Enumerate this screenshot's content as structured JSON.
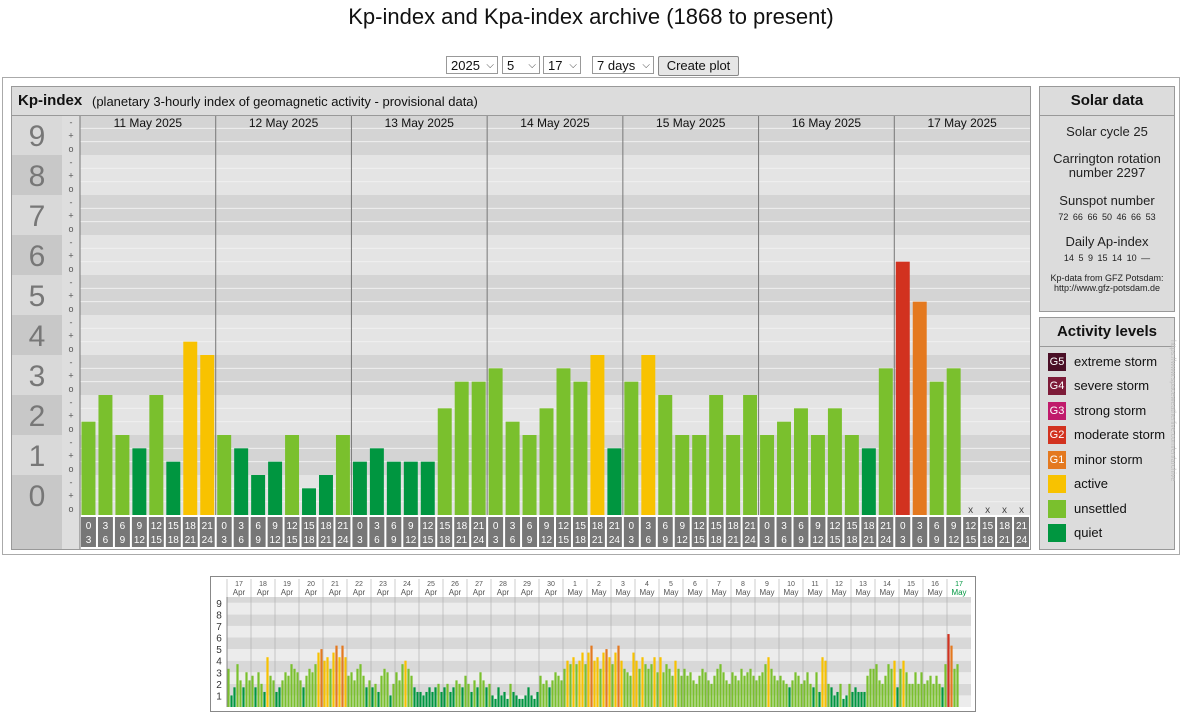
{
  "page": {
    "title": "Kp-index and Kpa-index archive (1868 to present)"
  },
  "controls": {
    "year": "2025",
    "month": "5",
    "day": "17",
    "period": "7 days",
    "button": "Create plot"
  },
  "chart_data": [
    {
      "type": "bar",
      "title": "Kp-index",
      "subtitle": "(planetary 3-hourly index of geomagnetic activity - provisional data)",
      "ylim": [
        0,
        9
      ],
      "yticks": [
        "0",
        "1",
        "2",
        "3",
        "4",
        "5",
        "6",
        "7",
        "8",
        "9"
      ],
      "subticks": [
        "o",
        "+",
        "-"
      ],
      "days": [
        "11 May 2025",
        "12 May 2025",
        "13 May 2025",
        "14 May 2025",
        "15 May 2025",
        "16 May 2025",
        "17 May 2025"
      ],
      "intervals": [
        [
          "0",
          "3"
        ],
        [
          "3",
          "6"
        ],
        [
          "6",
          "9"
        ],
        [
          "9",
          "12"
        ],
        [
          "12",
          "15"
        ],
        [
          "15",
          "18"
        ],
        [
          "18",
          "21"
        ],
        [
          "21",
          "24"
        ]
      ],
      "values": [
        [
          2.333,
          3.0,
          2.0,
          1.667,
          3.0,
          1.333,
          4.333,
          4.0
        ],
        [
          2.0,
          1.667,
          1.0,
          1.333,
          2.0,
          0.667,
          1.0,
          2.0
        ],
        [
          1.333,
          1.667,
          1.333,
          1.333,
          1.333,
          2.667,
          3.333,
          3.333
        ],
        [
          3.667,
          2.333,
          2.0,
          2.667,
          3.667,
          3.333,
          4.0,
          1.667
        ],
        [
          3.333,
          4.0,
          3.0,
          2.0,
          2.0,
          3.0,
          2.0,
          3.0
        ],
        [
          2.0,
          2.333,
          2.667,
          2.0,
          2.667,
          2.0,
          1.667,
          3.667
        ],
        [
          6.333,
          5.333,
          3.333,
          3.667,
          null,
          null,
          null,
          null
        ]
      ],
      "missing_marker": "x",
      "colors": {
        "quiet": "#009640",
        "unsettled": "#7ac02d",
        "active": "#f8c200",
        "G1": "#e4791f",
        "G2": "#d2321f",
        "G3": "#c01a6b",
        "G4": "#7d1b38",
        "G5": "#4a0f26"
      }
    },
    {
      "type": "bar",
      "ylim": [
        0,
        9
      ],
      "yticks": [
        "1",
        "2",
        "3",
        "4",
        "5",
        "6",
        "7",
        "8",
        "9"
      ],
      "days": [
        {
          "d": "17",
          "m": "Apr"
        },
        {
          "d": "18",
          "m": "Apr"
        },
        {
          "d": "19",
          "m": "Apr"
        },
        {
          "d": "20",
          "m": "Apr"
        },
        {
          "d": "21",
          "m": "Apr"
        },
        {
          "d": "22",
          "m": "Apr"
        },
        {
          "d": "23",
          "m": "Apr"
        },
        {
          "d": "24",
          "m": "Apr"
        },
        {
          "d": "25",
          "m": "Apr"
        },
        {
          "d": "26",
          "m": "Apr"
        },
        {
          "d": "27",
          "m": "Apr"
        },
        {
          "d": "28",
          "m": "Apr"
        },
        {
          "d": "29",
          "m": "Apr"
        },
        {
          "d": "30",
          "m": "Apr"
        },
        {
          "d": "1",
          "m": "May"
        },
        {
          "d": "2",
          "m": "May"
        },
        {
          "d": "3",
          "m": "May"
        },
        {
          "d": "4",
          "m": "May"
        },
        {
          "d": "5",
          "m": "May"
        },
        {
          "d": "6",
          "m": "May"
        },
        {
          "d": "7",
          "m": "May"
        },
        {
          "d": "8",
          "m": "May"
        },
        {
          "d": "9",
          "m": "May"
        },
        {
          "d": "10",
          "m": "May"
        },
        {
          "d": "11",
          "m": "May"
        },
        {
          "d": "12",
          "m": "May"
        },
        {
          "d": "13",
          "m": "May"
        },
        {
          "d": "14",
          "m": "May"
        },
        {
          "d": "15",
          "m": "May"
        },
        {
          "d": "16",
          "m": "May"
        },
        {
          "d": "17",
          "m": "May"
        }
      ],
      "current_day_color": "#009640",
      "values": [
        [
          3.3,
          1,
          1.7,
          3.7,
          2.3,
          1.7,
          3,
          2.3
        ],
        [
          2.7,
          1.7,
          3,
          2,
          1.3,
          4.3,
          2.7,
          2.3
        ],
        [
          1.3,
          1.7,
          2.3,
          3,
          2.7,
          3.7,
          3.3,
          3
        ],
        [
          2.3,
          1.7,
          2.7,
          3.3,
          3,
          3.7,
          4.7,
          5
        ],
        [
          4,
          4.3,
          3.3,
          4.7,
          5.3,
          4.3,
          5.3,
          4.3
        ],
        [
          2.7,
          3,
          2.3,
          3.3,
          3.7,
          2.7,
          1.7,
          2.3
        ],
        [
          1.7,
          2,
          1.3,
          2.7,
          3.3,
          3,
          1,
          2
        ],
        [
          3,
          2.3,
          3.7,
          4,
          3.3,
          2.7,
          1.7,
          1.3
        ],
        [
          1.3,
          1,
          1.3,
          1.7,
          1.3,
          1.7,
          2,
          1.3
        ],
        [
          1.7,
          2,
          1.3,
          1.7,
          2.3,
          2,
          1.7,
          2.7
        ],
        [
          2,
          1.3,
          2.3,
          1.7,
          3,
          2.3,
          1.7,
          2
        ],
        [
          1,
          0.7,
          1.7,
          1,
          1.3,
          0.7,
          2,
          1.3
        ],
        [
          1,
          0.7,
          0.7,
          1,
          1.7,
          1,
          0.7,
          1.3
        ],
        [
          2.7,
          2,
          2.3,
          1.7,
          2.3,
          3,
          2.7,
          2.3
        ],
        [
          3.3,
          4,
          3.7,
          4.3,
          3.7,
          4,
          4.7,
          3.7
        ],
        [
          4.7,
          5.3,
          4,
          4.3,
          3.3,
          4.7,
          5,
          4.3
        ],
        [
          3.7,
          4.7,
          5.3,
          4,
          3.3,
          3,
          2.7,
          4.7
        ],
        [
          4,
          3.3,
          4.3,
          3.7,
          3.3,
          3.7,
          4.3,
          3
        ],
        [
          4.3,
          3,
          3.7,
          3.3,
          2.7,
          4,
          3.3,
          2.7
        ],
        [
          3.3,
          2.7,
          3,
          2.3,
          2,
          2.7,
          3.3,
          3
        ],
        [
          2.3,
          2,
          2.7,
          3.3,
          3.7,
          3,
          2.3,
          2
        ],
        [
          3,
          2.7,
          2.3,
          3.3,
          2.7,
          3,
          3.3,
          2.7
        ],
        [
          2.3,
          2.7,
          3,
          3.7,
          4.3,
          3.3,
          2.7,
          2.3
        ],
        [
          2.7,
          2.3,
          2,
          1.7,
          2.3,
          3,
          2.7,
          2
        ],
        [
          2.3,
          3,
          2,
          1.7,
          3,
          1.3,
          4.3,
          4
        ],
        [
          2,
          1.7,
          1,
          1.3,
          2,
          0.7,
          1,
          2
        ],
        [
          1.3,
          1.7,
          1.3,
          1.3,
          1.3,
          2.7,
          3.3,
          3.3
        ],
        [
          3.7,
          2.3,
          2,
          2.7,
          3.7,
          3.3,
          4,
          1.7
        ],
        [
          3.3,
          4,
          3,
          2,
          2,
          3,
          2,
          3
        ],
        [
          2,
          2.3,
          2.7,
          2,
          2.7,
          2,
          1.7,
          3.7
        ],
        [
          6.3,
          5.3,
          3.3,
          3.7,
          null,
          null,
          null,
          null
        ]
      ]
    }
  ],
  "solar": {
    "title": "Solar data",
    "cycle": "Solar cycle 25",
    "carrington": "Carrington rotation number 2297",
    "sunspot_label": "Sunspot number",
    "sunspot_values": [
      "72",
      "66",
      "66",
      "50",
      "46",
      "66",
      "53"
    ],
    "ap_label": "Daily Ap-index",
    "ap_values": [
      "14",
      "5",
      "9",
      "15",
      "14",
      "10",
      "—"
    ],
    "source": "Kp-data from GFZ Potsdam:",
    "source_url": "http://www.gfz-potsdam.de"
  },
  "activity": {
    "title": "Activity levels",
    "items": [
      {
        "code": "G5",
        "label": "extreme storm",
        "color": "#4a0f26"
      },
      {
        "code": "G4",
        "label": "severe storm",
        "color": "#7d1b38"
      },
      {
        "code": "G3",
        "label": "strong storm",
        "color": "#c01a6b"
      },
      {
        "code": "G2",
        "label": "moderate storm",
        "color": "#d2321f"
      },
      {
        "code": "G1",
        "label": "minor storm",
        "color": "#e4791f"
      },
      {
        "code": "",
        "label": "active",
        "color": "#f8c200"
      },
      {
        "code": "",
        "label": "unsettled",
        "color": "#7ac02d"
      },
      {
        "code": "",
        "label": "quiet",
        "color": "#009640"
      }
    ]
  },
  "watermark": "https://www.spaceweatherlive.com/en/archive"
}
